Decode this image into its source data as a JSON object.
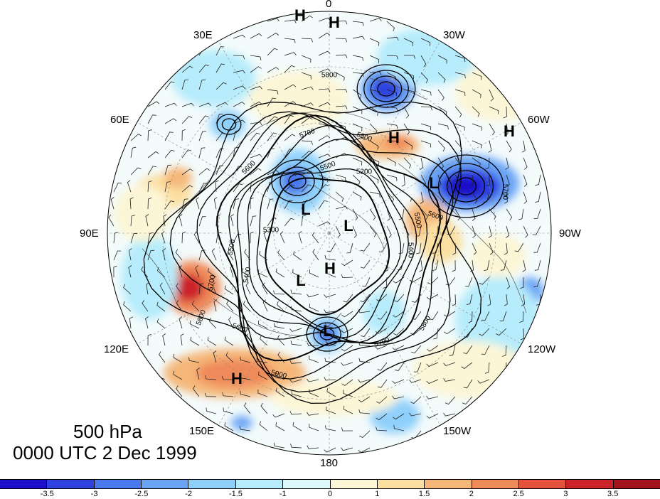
{
  "title": {
    "level": "500 hPa",
    "time": "0000 UTC 2 Dec 1999"
  },
  "longitude_labels": [
    "0",
    "30W",
    "60W",
    "90W",
    "120W",
    "150W",
    "180",
    "150E",
    "120E",
    "90E",
    "60E",
    "30E"
  ],
  "pressure_centers": [
    "H",
    "H",
    "H",
    "H",
    "L",
    "L",
    "L",
    "L",
    "H",
    "L",
    "H"
  ],
  "contour_labels": [
    "5800",
    "5800",
    "5700",
    "5600",
    "5500",
    "5300",
    "5200",
    "5400",
    "5500",
    "5600",
    "5700",
    "5800",
    "5900",
    "5700",
    "5800",
    "5600",
    "5500",
    "5400",
    "5700"
  ],
  "colorbar": {
    "ticks": [
      "-3.5",
      "-3",
      "-2.5",
      "-2",
      "-1.5",
      "-1",
      "0",
      "1",
      "1.5",
      "2",
      "2.5",
      "3",
      "3.5"
    ],
    "colors": [
      "#1d0fc9",
      "#2f42e0",
      "#4a78ee",
      "#6ba4f5",
      "#8fd0fb",
      "#b6ecfb",
      "#dff8fb",
      "#fdf6d6",
      "#fbe0a2",
      "#f5b779",
      "#ef8a5a",
      "#e4513d",
      "#cc2329",
      "#a3131c"
    ]
  }
}
